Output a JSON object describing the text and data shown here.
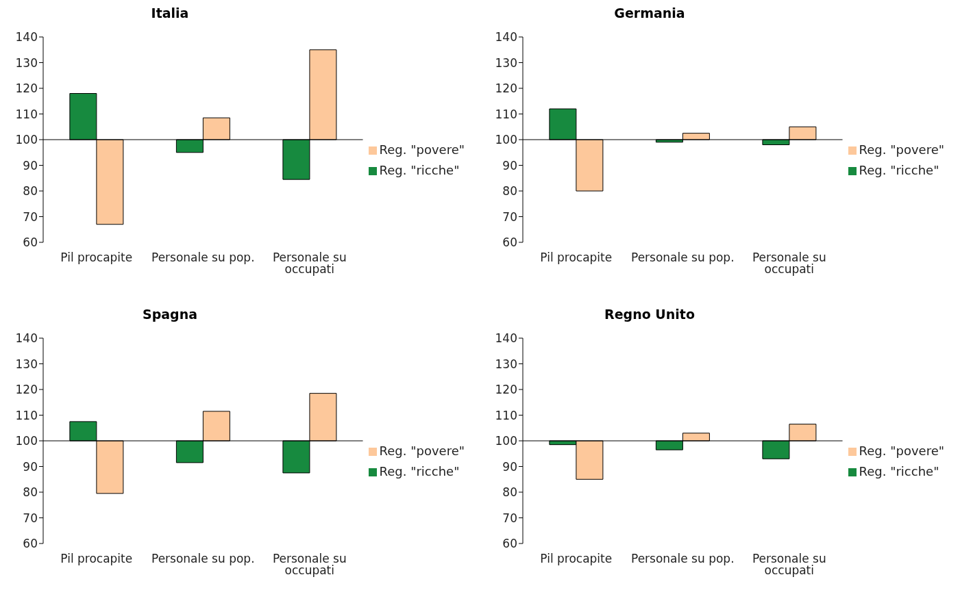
{
  "chart_data": [
    {
      "type": "bar",
      "title": "Italia",
      "categories": [
        "Pil procapite",
        "Personale su pop.",
        "Personale su occupati"
      ],
      "series": [
        {
          "name": "Reg. \"ricche\"",
          "color": "#178a3f",
          "base": [
            100,
            100,
            100
          ],
          "values": [
            18,
            -5,
            -15.5
          ]
        },
        {
          "name": "Reg. \"povere\"",
          "color": "#fdc89b",
          "base": [
            100,
            100,
            100
          ],
          "values": [
            -33,
            8.5,
            35
          ]
        }
      ],
      "ylim": [
        60,
        140
      ],
      "yticks": [
        60,
        70,
        80,
        90,
        100,
        110,
        120,
        130,
        140
      ],
      "ref_lines": [
        {
          "axis": "y",
          "value": 100,
          "color": "#000000"
        }
      ],
      "grid": false,
      "legend": "right"
    },
    {
      "type": "bar",
      "title": "Germania",
      "categories": [
        "Pil procapite",
        "Personale su pop.",
        "Personale su occupati"
      ],
      "series": [
        {
          "name": "Reg. \"ricche\"",
          "color": "#178a3f",
          "base": [
            100,
            100,
            100
          ],
          "values": [
            12,
            -1,
            -2
          ]
        },
        {
          "name": "Reg. \"povere\"",
          "color": "#fdc89b",
          "base": [
            100,
            100,
            100
          ],
          "values": [
            -20,
            2.5,
            5
          ]
        }
      ],
      "ylim": [
        60,
        140
      ],
      "yticks": [
        60,
        70,
        80,
        90,
        100,
        110,
        120,
        130,
        140
      ],
      "ref_lines": [
        {
          "axis": "y",
          "value": 100,
          "color": "#000000"
        }
      ],
      "grid": false,
      "legend": "right"
    },
    {
      "type": "bar",
      "title": "Spagna",
      "categories": [
        "Pil procapite",
        "Personale su pop.",
        "Personale su occupati"
      ],
      "series": [
        {
          "name": "Reg. \"ricche\"",
          "color": "#178a3f",
          "base": [
            100,
            100,
            100
          ],
          "values": [
            7.5,
            -8.5,
            -12.5
          ]
        },
        {
          "name": "Reg. \"povere\"",
          "color": "#fdc89b",
          "base": [
            100,
            100,
            100
          ],
          "values": [
            -20.5,
            11.5,
            18.5
          ]
        }
      ],
      "ylim": [
        60,
        140
      ],
      "yticks": [
        60,
        70,
        80,
        90,
        100,
        110,
        120,
        130,
        140
      ],
      "ref_lines": [
        {
          "axis": "y",
          "value": 100,
          "color": "#000000"
        }
      ],
      "grid": false,
      "legend": "right"
    },
    {
      "type": "bar",
      "title": "Regno Unito",
      "categories": [
        "Pil procapite",
        "Personale su pop.",
        "Personale su occupati"
      ],
      "series": [
        {
          "name": "Reg. \"ricche\"",
          "color": "#178a3f",
          "base": [
            100,
            100,
            100
          ],
          "values": [
            -1.5,
            -3.5,
            -7
          ]
        },
        {
          "name": "Reg. \"povere\"",
          "color": "#fdc89b",
          "base": [
            100,
            100,
            100
          ],
          "values": [
            -15,
            3,
            6.5
          ]
        }
      ],
      "ylim": [
        60,
        140
      ],
      "yticks": [
        60,
        70,
        80,
        90,
        100,
        110,
        120,
        130,
        140
      ],
      "ref_lines": [
        {
          "axis": "y",
          "value": 100,
          "color": "#000000"
        }
      ],
      "grid": false,
      "legend": "right"
    }
  ]
}
